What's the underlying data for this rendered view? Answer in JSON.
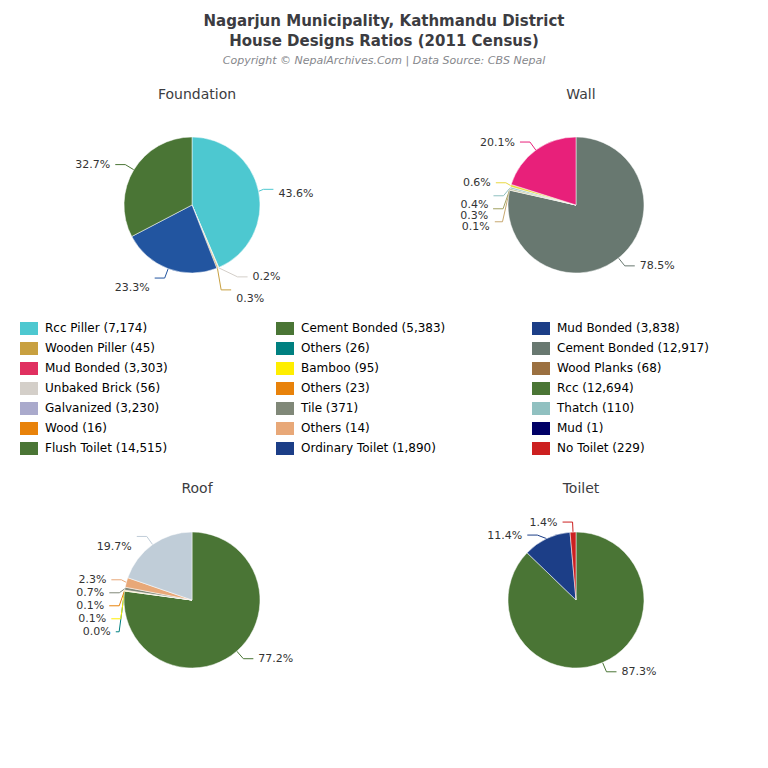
{
  "title": "Nagarjun Municipality, Kathmandu District\nHouse Designs Ratios (2011 Census)",
  "subtitle": "Copyright © NepalArchives.Com | Data Source: CBS Nepal",
  "annotations": [
    {
      "text": "Rcc Piller (7,174)",
      "color": "#4DC8D0"
    },
    {
      "text": "Cement Bonded (5,383)",
      "color": "#4A7535"
    },
    {
      "text": "Mud Bonded (3,838)",
      "color": "#1C3E87"
    },
    {
      "text": "Wooden Piller (45)",
      "color": "#C8A040"
    },
    {
      "text": "Others (26)",
      "color": "#008080"
    },
    {
      "text": "Cement Bonded (12,917)",
      "color": "#687870"
    },
    {
      "text": "Mud Bonded (3,303)",
      "color": "#E03060"
    },
    {
      "text": "Bamboo (95)",
      "color": "#FFEE00"
    },
    {
      "text": "Wood Planks (68)",
      "color": "#9B7040"
    },
    {
      "text": "Unbaked Brick (56)",
      "color": "#D4CFC9"
    },
    {
      "text": "Others (23)",
      "color": "#E8820A"
    },
    {
      "text": "Rcc (12,694)",
      "color": "#4A7535"
    },
    {
      "text": "Galvanized (3,230)",
      "color": "#AAAACC"
    },
    {
      "text": "Tile (371)",
      "color": "#808878"
    },
    {
      "text": "Thatch (110)",
      "color": "#90C0C0"
    },
    {
      "text": "Wood (16)",
      "color": "#E8820A"
    },
    {
      "text": "Others (14)",
      "color": "#E8A878"
    },
    {
      "text": "Mud (1)",
      "color": "#000066"
    },
    {
      "text": "Flush Toilet (14,515)",
      "color": "#4A7535"
    },
    {
      "text": "Ordinary Toilet (1,890)",
      "color": "#1C3E87"
    },
    {
      "text": "No Toilet (229)",
      "color": "#CC2020"
    }
  ],
  "chart_data": [
    {
      "type": "pie",
      "title": "Foundation",
      "values": [
        43.6,
        0.2,
        0.3,
        23.3,
        32.7
      ],
      "value_labels": [
        "43.6%",
        "0.2%",
        "0.3%",
        "23.3%",
        "32.7%"
      ],
      "colors": [
        "#4DC8D0",
        "#D4CFC9",
        "#C8A040",
        "#2255A0",
        "#4A7535"
      ],
      "data_labels": true
    },
    {
      "type": "pie",
      "title": "Wall",
      "values": [
        78.5,
        0.1,
        0.3,
        0.4,
        0.6,
        20.1
      ],
      "value_labels": [
        "78.5%",
        "0.1%",
        "0.3%",
        "0.4%",
        "0.6%",
        "20.1%"
      ],
      "colors": [
        "#687870",
        "#C8A870",
        "#A0A060",
        "#90C0C0",
        "#E8D840",
        "#E8207A"
      ],
      "data_labels": true
    },
    {
      "type": "pie",
      "title": "Roof",
      "values": [
        77.2,
        0.001,
        0.1,
        0.1,
        0.7,
        2.3,
        19.7
      ],
      "value_labels": [
        "77.2%",
        "0.0%",
        "0.1%",
        "0.1%",
        "0.7%",
        "2.3%",
        "19.7%"
      ],
      "colors": [
        "#4A7535",
        "#008080",
        "#FFEE00",
        "#E8820A",
        "#808878",
        "#E8A878",
        "#C0CDD8"
      ],
      "data_labels": true
    },
    {
      "type": "pie",
      "title": "Toilet",
      "values": [
        87.3,
        11.4,
        1.4
      ],
      "value_labels": [
        "87.3%",
        "11.4%",
        "1.4%"
      ],
      "colors": [
        "#4A7535",
        "#1C3E87",
        "#CC2020"
      ],
      "data_labels": true
    }
  ]
}
